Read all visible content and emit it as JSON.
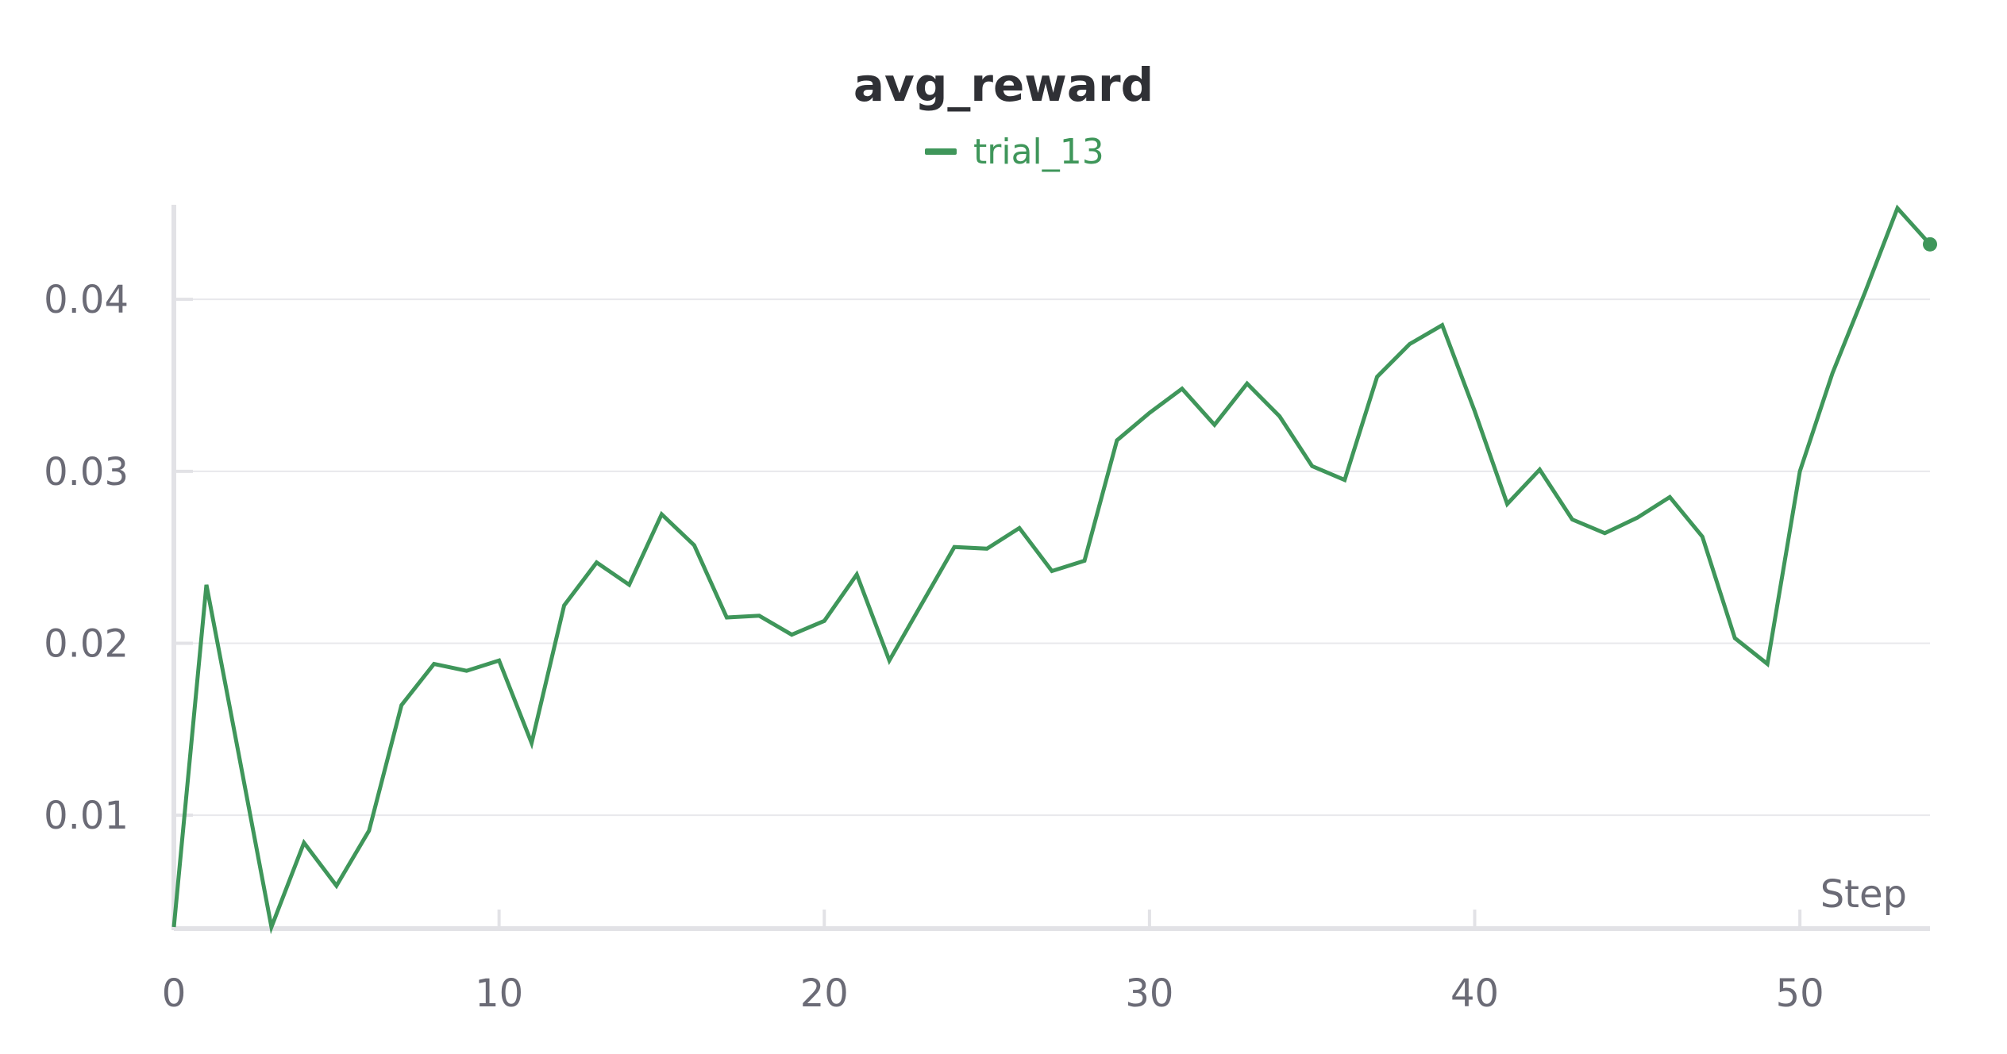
{
  "chart_data": {
    "type": "line",
    "title": "avg_reward",
    "xlabel": "Step",
    "ylabel": "",
    "xlim": [
      0,
      54
    ],
    "ylim": [
      0.0035,
      0.0455
    ],
    "x_ticks": [
      0,
      10,
      20,
      30,
      40,
      50
    ],
    "x_tick_labels": [
      "0",
      "10",
      "20",
      "30",
      "40",
      "50"
    ],
    "y_ticks": [
      0.01,
      0.02,
      0.03,
      0.04
    ],
    "y_tick_labels": [
      "0.01",
      "0.02",
      "0.03",
      "0.04"
    ],
    "grid": "horizontal",
    "legend_position": "top-center",
    "colors": {
      "series": "#3f965a",
      "grid": "#e8e8ec",
      "axis": "#e2e2e6",
      "tick_text": "#6b6b76",
      "title": "#2f3035"
    },
    "series": [
      {
        "name": "trial_13",
        "x": [
          0,
          1,
          2,
          3,
          4,
          5,
          6,
          7,
          8,
          9,
          10,
          11,
          12,
          13,
          14,
          15,
          16,
          17,
          18,
          19,
          20,
          21,
          22,
          23,
          24,
          25,
          26,
          27,
          28,
          29,
          30,
          31,
          32,
          33,
          34,
          35,
          36,
          37,
          38,
          39,
          40,
          41,
          42,
          43,
          44,
          45,
          46,
          47,
          48,
          49,
          50,
          51,
          52,
          53,
          54
        ],
        "values": [
          0.0035,
          0.0234,
          0.0135,
          0.0035,
          0.0084,
          0.0059,
          0.0091,
          0.0164,
          0.0188,
          0.0184,
          0.019,
          0.0142,
          0.0222,
          0.0247,
          0.0234,
          0.0275,
          0.0257,
          0.0215,
          0.0216,
          0.0205,
          0.0213,
          0.024,
          0.019,
          0.0223,
          0.0256,
          0.0255,
          0.0267,
          0.0242,
          0.0248,
          0.0318,
          0.0334,
          0.0348,
          0.0327,
          0.0351,
          0.0332,
          0.0303,
          0.0295,
          0.0355,
          0.0374,
          0.0385,
          0.0335,
          0.0281,
          0.0301,
          0.0272,
          0.0264,
          0.0273,
          0.0285,
          0.0262,
          0.0203,
          0.0188,
          0.03,
          0.0357,
          0.0404,
          0.0453,
          0.0432
        ]
      }
    ]
  }
}
